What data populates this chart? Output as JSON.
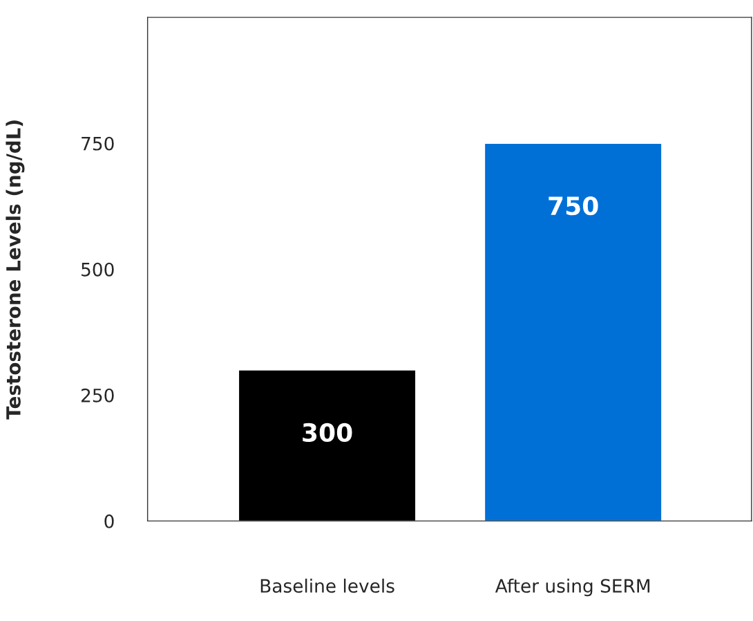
{
  "chart_data": {
    "type": "bar",
    "ylabel": "Testosterone Levels (ng/dL)",
    "categories": [
      "Baseline levels",
      "After using SERM"
    ],
    "values": [
      300,
      750
    ],
    "colors": [
      "#000000",
      "#0070d6"
    ],
    "ylim": [
      0,
      1000
    ],
    "yticks": [
      0,
      250,
      500,
      750
    ],
    "data_labels": true,
    "grid": false
  }
}
